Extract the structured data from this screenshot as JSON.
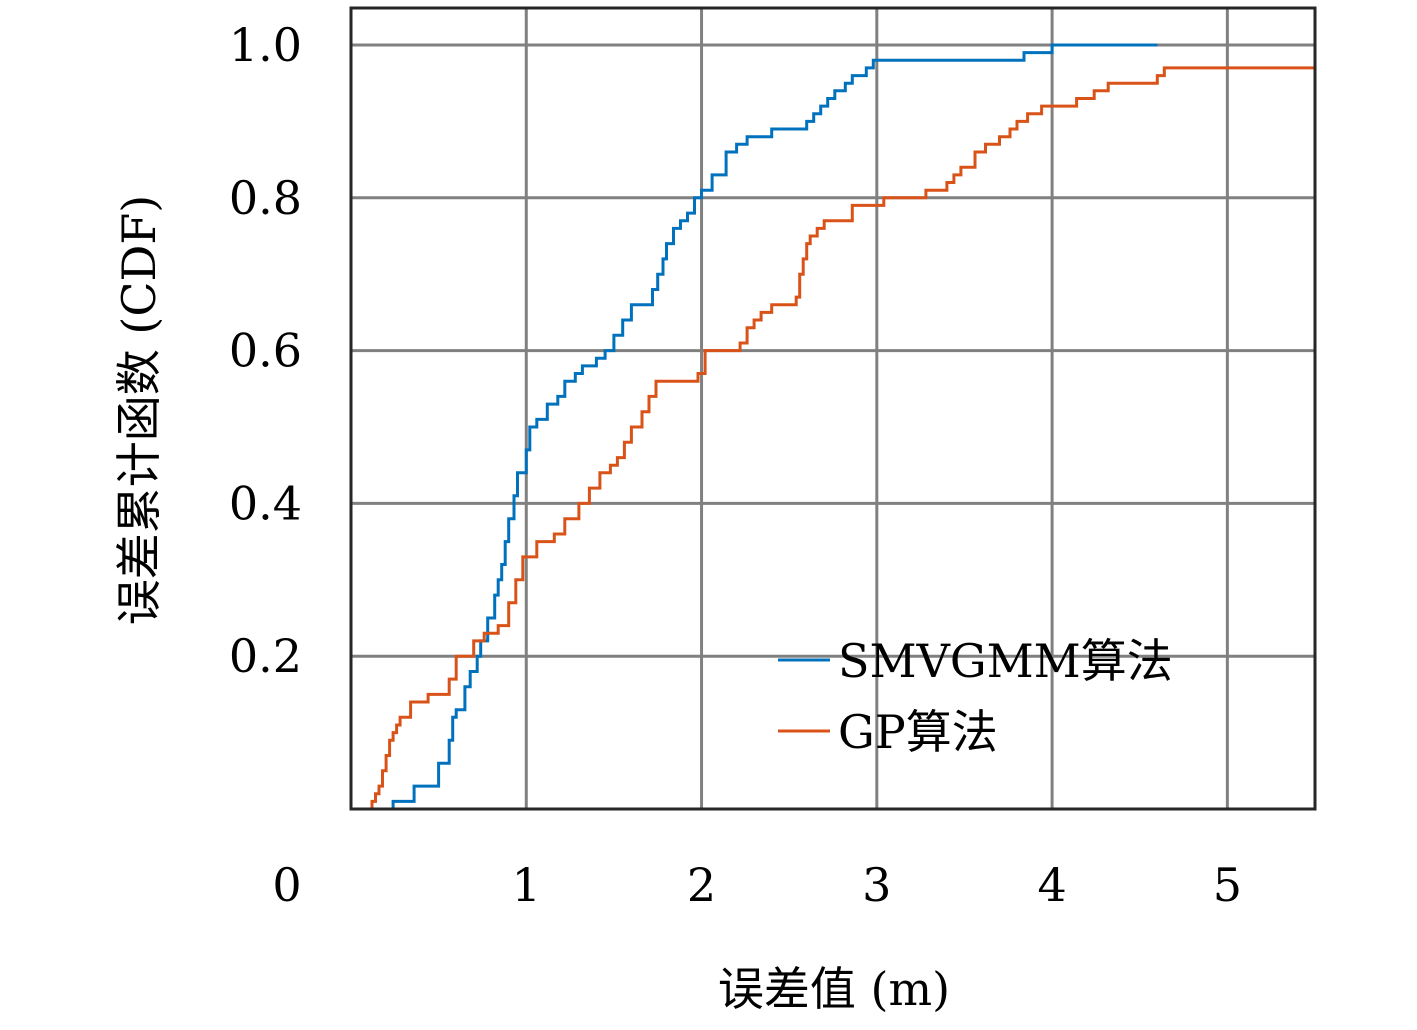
{
  "chart_data": {
    "type": "line",
    "xlabel": "误差值 (m)",
    "ylabel": "误差累计函数 (CDF)",
    "xlim": [
      0,
      5.5
    ],
    "ylim": [
      0,
      1.0
    ],
    "x_ticks": [
      "0",
      "1",
      "2",
      "3",
      "4",
      "5"
    ],
    "y_ticks": [
      "0.2",
      "0.4",
      "0.6",
      "0.8",
      "1.0"
    ],
    "grid": true,
    "legend_position": "bottom-right",
    "series": [
      {
        "name": "SMVGMM算法",
        "color": "#0072BD",
        "x": [
          0.24,
          0.36,
          0.5,
          0.56,
          0.58,
          0.6,
          0.65,
          0.68,
          0.72,
          0.74,
          0.78,
          0.82,
          0.84,
          0.86,
          0.88,
          0.9,
          0.93,
          0.95,
          1.0,
          1.02,
          1.06,
          1.12,
          1.18,
          1.22,
          1.28,
          1.32,
          1.4,
          1.45,
          1.5,
          1.55,
          1.6,
          1.72,
          1.75,
          1.78,
          1.8,
          1.84,
          1.88,
          1.92,
          1.96,
          2.0,
          2.06,
          2.14,
          2.2,
          2.26,
          2.4,
          2.6,
          2.64,
          2.68,
          2.72,
          2.76,
          2.82,
          2.86,
          2.94,
          2.98,
          3.16,
          3.44,
          3.84,
          3.96,
          4.0,
          4.02,
          4.06,
          4.2,
          4.6
        ],
        "y": [
          0.01,
          0.03,
          0.06,
          0.09,
          0.12,
          0.13,
          0.16,
          0.18,
          0.2,
          0.22,
          0.25,
          0.28,
          0.3,
          0.32,
          0.35,
          0.38,
          0.41,
          0.44,
          0.47,
          0.5,
          0.51,
          0.53,
          0.54,
          0.56,
          0.57,
          0.58,
          0.59,
          0.6,
          0.62,
          0.64,
          0.66,
          0.68,
          0.7,
          0.72,
          0.74,
          0.76,
          0.77,
          0.78,
          0.8,
          0.81,
          0.83,
          0.86,
          0.87,
          0.88,
          0.89,
          0.9,
          0.91,
          0.92,
          0.93,
          0.94,
          0.95,
          0.96,
          0.97,
          0.98,
          0.98,
          0.98,
          0.99,
          0.99,
          1.0,
          1.0,
          1.0,
          1.0,
          1.0
        ],
        "y_display": [
          0.01,
          0.03,
          0.06,
          0.09,
          0.12,
          0.13,
          0.16,
          0.18,
          0.2,
          0.22,
          0.25,
          0.28,
          0.3,
          0.32,
          0.35,
          0.38,
          0.41,
          0.44,
          0.47,
          0.5,
          0.51,
          0.53,
          0.54,
          0.56,
          0.57,
          0.58,
          0.59,
          0.6,
          0.62,
          0.64,
          0.66,
          0.68,
          0.7,
          0.72,
          0.74,
          0.76,
          0.77,
          0.78,
          0.8,
          0.81,
          0.83,
          0.86,
          0.87,
          0.88,
          0.89,
          0.9,
          0.91,
          0.92,
          0.93,
          0.94,
          0.95,
          0.96,
          0.97,
          0.98,
          0.98,
          0.98,
          0.99,
          0.99,
          1.0,
          1.0,
          1.0,
          1.0,
          1.0
        ]
      },
      {
        "name": "GP算法",
        "color": "#D95319",
        "x": [
          0.12,
          0.14,
          0.16,
          0.18,
          0.2,
          0.22,
          0.24,
          0.26,
          0.28,
          0.3,
          0.34,
          0.44,
          0.56,
          0.6,
          0.7,
          0.76,
          0.84,
          0.9,
          0.94,
          0.98,
          1.06,
          1.16,
          1.22,
          1.3,
          1.36,
          1.42,
          1.48,
          1.52,
          1.56,
          1.6,
          1.66,
          1.7,
          1.74,
          1.98,
          2.02,
          2.06,
          2.22,
          2.26,
          2.3,
          2.34,
          2.4,
          2.54,
          2.56,
          2.58,
          2.6,
          2.62,
          2.66,
          2.7,
          2.78,
          2.86,
          3.04,
          3.16,
          3.28,
          3.4,
          3.44,
          3.48,
          3.56,
          3.62,
          3.7,
          3.76,
          3.8,
          3.86,
          3.94,
          4.14,
          4.24,
          4.32,
          4.5,
          4.6,
          4.64,
          5.5
        ],
        "y": [
          0.01,
          0.02,
          0.03,
          0.05,
          0.07,
          0.09,
          0.1,
          0.11,
          0.12,
          0.12,
          0.14,
          0.15,
          0.17,
          0.2,
          0.22,
          0.23,
          0.24,
          0.27,
          0.3,
          0.33,
          0.35,
          0.36,
          0.38,
          0.4,
          0.42,
          0.44,
          0.45,
          0.46,
          0.48,
          0.5,
          0.52,
          0.54,
          0.56,
          0.57,
          0.6,
          0.6,
          0.61,
          0.63,
          0.64,
          0.65,
          0.66,
          0.67,
          0.7,
          0.72,
          0.74,
          0.75,
          0.76,
          0.77,
          0.77,
          0.79,
          0.8,
          0.8,
          0.81,
          0.82,
          0.83,
          0.84,
          0.86,
          0.87,
          0.88,
          0.89,
          0.9,
          0.91,
          0.92,
          0.93,
          0.94,
          0.95,
          0.95,
          0.96,
          0.97,
          0.97
        ],
        "y_display": [
          0.01,
          0.02,
          0.03,
          0.05,
          0.07,
          0.09,
          0.1,
          0.11,
          0.12,
          0.12,
          0.14,
          0.15,
          0.17,
          0.2,
          0.22,
          0.23,
          0.24,
          0.27,
          0.3,
          0.33,
          0.35,
          0.36,
          0.38,
          0.4,
          0.42,
          0.44,
          0.45,
          0.46,
          0.48,
          0.5,
          0.52,
          0.54,
          0.56,
          0.57,
          0.6,
          0.6,
          0.61,
          0.63,
          0.64,
          0.65,
          0.66,
          0.67,
          0.7,
          0.72,
          0.74,
          0.75,
          0.76,
          0.77,
          0.77,
          0.79,
          0.8,
          0.8,
          0.81,
          0.82,
          0.83,
          0.84,
          0.86,
          0.87,
          0.88,
          0.89,
          0.9,
          0.91,
          0.92,
          0.93,
          0.94,
          0.95,
          0.95,
          0.96,
          0.97,
          0.97
        ]
      }
    ]
  }
}
